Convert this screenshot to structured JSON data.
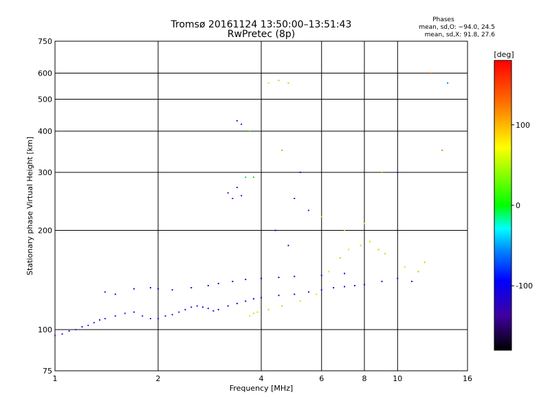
{
  "chart_data": {
    "type": "scatter",
    "title": "Tromsø 20161124 13:50:00–13:51:43",
    "subtitle": "RwPretec (8p)",
    "xlabel": "Frequency [MHz]",
    "ylabel": "Stationary phase Virtual Height [km]",
    "x_scale": "log",
    "y_scale": "log",
    "xlim": [
      1,
      16
    ],
    "ylim": [
      75,
      750
    ],
    "x_ticks": [
      1,
      2,
      4,
      6,
      8,
      10,
      16
    ],
    "y_ticks": [
      75,
      100,
      200,
      300,
      400,
      500,
      600,
      750
    ],
    "grid": true,
    "info": {
      "heading": "Phases",
      "line1": "mean, sd,O: −94.0, 24.5",
      "line2": "mean, sd,X:  91.8, 27.6"
    },
    "colorbar": {
      "label": "[deg]",
      "range": [
        -180,
        180
      ],
      "ticks": [
        100,
        0,
        -100
      ],
      "colormap": "rainbow"
    },
    "series": [
      {
        "comment_role": "O-mode low traces",
        "points": [
          [
            1.0,
            96,
            -130
          ],
          [
            1.05,
            97,
            -125
          ],
          [
            1.1,
            99,
            -120
          ],
          [
            1.15,
            100,
            -128
          ],
          [
            1.2,
            102,
            -115
          ],
          [
            1.25,
            103,
            -130
          ],
          [
            1.3,
            105,
            -122
          ],
          [
            1.35,
            107,
            -118
          ],
          [
            1.4,
            108,
            -135
          ],
          [
            1.5,
            110,
            -120
          ],
          [
            1.6,
            112,
            -125
          ],
          [
            1.7,
            113,
            -115
          ],
          [
            1.8,
            110,
            -130
          ],
          [
            1.9,
            108,
            -120
          ],
          [
            2.0,
            108,
            -125
          ],
          [
            2.1,
            110,
            -118
          ],
          [
            2.2,
            111,
            -122
          ],
          [
            2.3,
            113,
            -130
          ],
          [
            2.4,
            115,
            -115
          ],
          [
            2.5,
            117,
            -120
          ],
          [
            2.6,
            118,
            -125
          ],
          [
            2.7,
            117,
            -110
          ],
          [
            2.8,
            116,
            -120
          ],
          [
            2.9,
            114,
            -115
          ],
          [
            3.0,
            115,
            -110
          ],
          [
            3.2,
            118,
            -105
          ],
          [
            3.4,
            120,
            -100
          ],
          [
            3.6,
            122,
            -110
          ],
          [
            3.8,
            124,
            -105
          ],
          [
            4.0,
            125,
            -115
          ],
          [
            4.5,
            127,
            -110
          ],
          [
            5.0,
            128,
            -100
          ],
          [
            5.5,
            130,
            -105
          ],
          [
            6.0,
            132,
            -110
          ],
          [
            6.5,
            134,
            -100
          ],
          [
            7.0,
            135,
            -105
          ],
          [
            7.5,
            136,
            -110
          ],
          [
            8.0,
            137,
            -100
          ],
          [
            9.0,
            140,
            -105
          ],
          [
            10.0,
            143,
            -110
          ]
        ]
      },
      {
        "comment_role": "upper trace",
        "points": [
          [
            1.4,
            130,
            -120
          ],
          [
            1.5,
            128,
            -110
          ],
          [
            1.7,
            133,
            -100
          ],
          [
            1.9,
            134,
            -110
          ],
          [
            2.0,
            133,
            -105
          ],
          [
            2.2,
            132,
            -115
          ],
          [
            2.5,
            134,
            -100
          ],
          [
            2.8,
            136,
            -110
          ],
          [
            3.0,
            138,
            -100
          ],
          [
            3.3,
            140,
            -105
          ],
          [
            3.6,
            142,
            -110
          ],
          [
            4.0,
            143,
            -100
          ],
          [
            4.5,
            144,
            -105
          ],
          [
            5.0,
            145,
            -110
          ],
          [
            6.0,
            146,
            -100
          ],
          [
            7.0,
            148,
            -105
          ]
        ]
      },
      {
        "comment_role": "X-mode echoes",
        "points": [
          [
            3.7,
            110,
            110
          ],
          [
            3.8,
            112,
            100
          ],
          [
            3.9,
            113,
            115
          ],
          [
            4.2,
            115,
            90
          ],
          [
            4.6,
            118,
            120
          ],
          [
            5.2,
            122,
            95
          ],
          [
            5.8,
            128,
            105
          ],
          [
            6.3,
            150,
            100
          ],
          [
            6.8,
            165,
            85
          ],
          [
            7.2,
            175,
            110
          ],
          [
            7.8,
            180,
            95
          ],
          [
            8.3,
            185,
            100
          ],
          [
            8.8,
            175,
            120
          ],
          [
            9.2,
            170,
            90
          ],
          [
            10.5,
            155,
            100
          ],
          [
            11.5,
            150,
            80
          ]
        ]
      },
      {
        "comment_role": "F-region cluster",
        "points": [
          [
            3.2,
            260,
            -140
          ],
          [
            3.3,
            250,
            -135
          ],
          [
            3.4,
            270,
            -145
          ],
          [
            3.5,
            255,
            -130
          ],
          [
            3.4,
            430,
            -140
          ],
          [
            3.5,
            420,
            -135
          ],
          [
            3.6,
            290,
            20
          ],
          [
            3.8,
            290,
            40
          ],
          [
            3.7,
            400,
            60
          ],
          [
            4.2,
            560,
            110
          ],
          [
            4.5,
            570,
            120
          ],
          [
            4.8,
            560,
            90
          ],
          [
            4.6,
            350,
            70
          ],
          [
            5.0,
            250,
            -90
          ],
          [
            5.2,
            300,
            -95
          ],
          [
            4.4,
            200,
            -100
          ],
          [
            4.8,
            180,
            -105
          ],
          [
            5.5,
            230,
            -90
          ],
          [
            6.0,
            220,
            90
          ],
          [
            7.0,
            200,
            100
          ],
          [
            8.0,
            210,
            110
          ],
          [
            9.0,
            300,
            130
          ],
          [
            10.0,
            300,
            -120
          ],
          [
            12.5,
            600,
            150
          ],
          [
            13.5,
            350,
            140
          ],
          [
            14.0,
            560,
            -60
          ],
          [
            12.0,
            160,
            120
          ],
          [
            11.0,
            140,
            -100
          ]
        ]
      }
    ]
  }
}
